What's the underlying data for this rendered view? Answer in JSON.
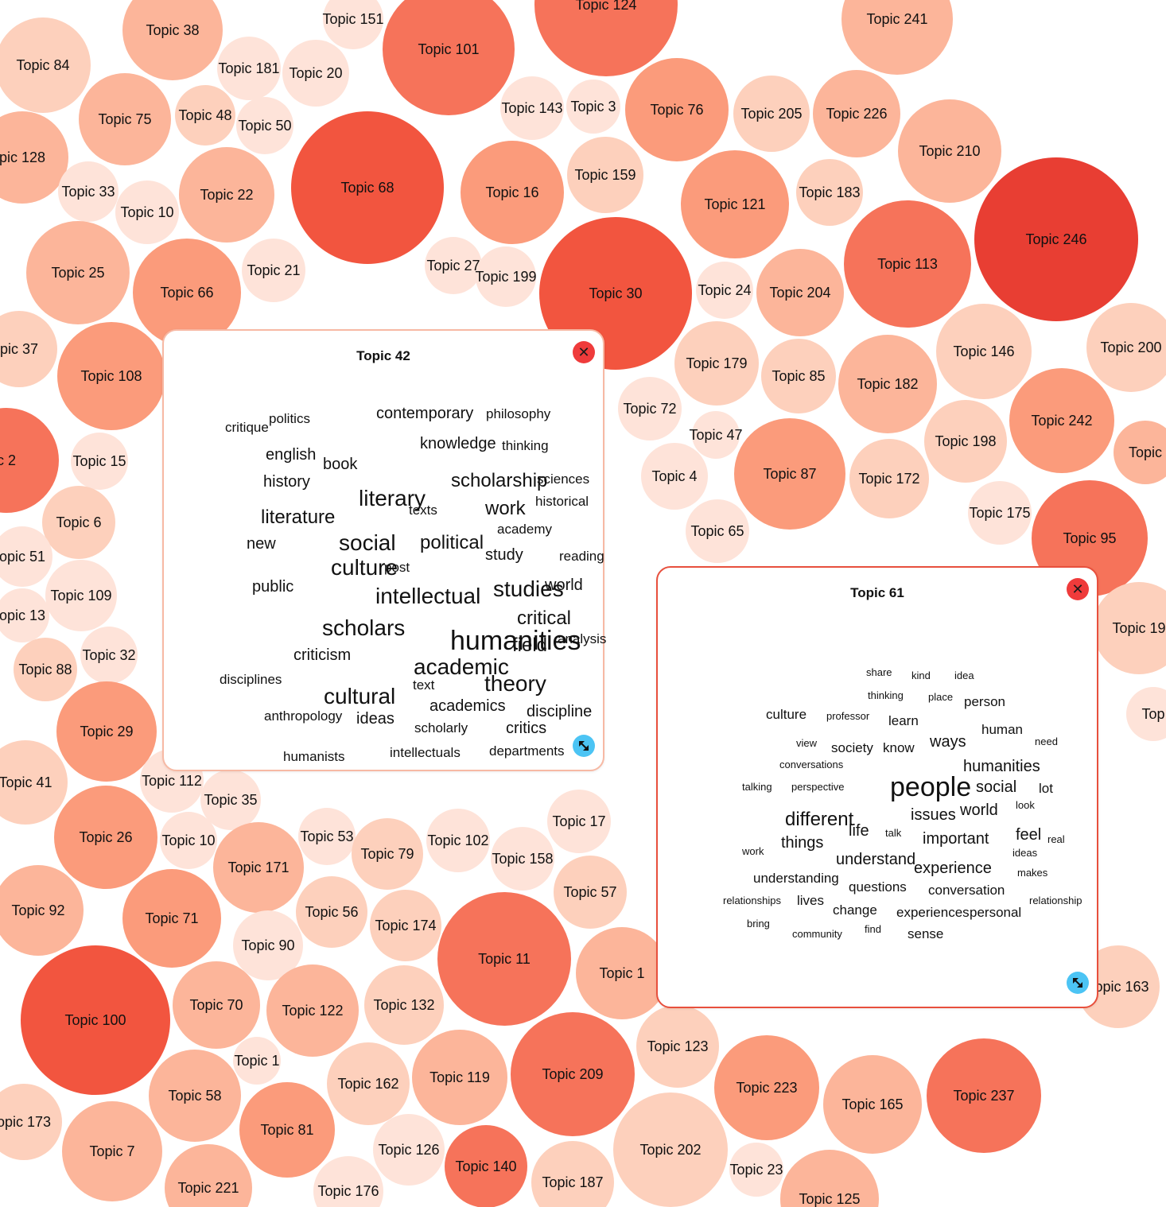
{
  "bubbles": [
    {
      "label": "Topic 38",
      "shade": 2
    },
    {
      "label": "Topic 151",
      "shade": 0
    },
    {
      "label": "Topic 101",
      "shade": 4
    },
    {
      "label": "Topic 124",
      "shade": 4
    },
    {
      "label": "Topic 241",
      "shade": 2
    },
    {
      "label": "Topic 84",
      "shade": 1
    },
    {
      "label": "Topic 181",
      "shade": 0
    },
    {
      "label": "Topic 20",
      "shade": 0
    },
    {
      "label": "Topic 75",
      "shade": 2
    },
    {
      "label": "Topic 48",
      "shade": 1
    },
    {
      "label": "Topic 50",
      "shade": 0
    },
    {
      "label": "Topic 143",
      "shade": 0
    },
    {
      "label": "Topic 3",
      "shade": 0
    },
    {
      "label": "Topic 76",
      "shade": 3
    },
    {
      "label": "Topic 205",
      "shade": 1
    },
    {
      "label": "Topic 226",
      "shade": 2
    },
    {
      "label": "Topic 210",
      "shade": 2
    },
    {
      "label": "pic 128",
      "shade": 2
    },
    {
      "label": "Topic 68",
      "shade": 5
    },
    {
      "label": "Topic 16",
      "shade": 3
    },
    {
      "label": "Topic 159",
      "shade": 1
    },
    {
      "label": "Topic 33",
      "shade": 0
    },
    {
      "label": "Topic 10",
      "shade": 0
    },
    {
      "label": "Topic 22",
      "shade": 2
    },
    {
      "label": "Topic 121",
      "shade": 3
    },
    {
      "label": "Topic 183",
      "shade": 1
    },
    {
      "label": "Topic 246",
      "shade": 6
    },
    {
      "label": "Topic 25",
      "shade": 2
    },
    {
      "label": "Topic 66",
      "shade": 3
    },
    {
      "label": "Topic 21",
      "shade": 0
    },
    {
      "label": "Topic 27",
      "shade": 0
    },
    {
      "label": "Topic 199",
      "shade": 0
    },
    {
      "label": "Topic 30",
      "shade": 5
    },
    {
      "label": "Topic 24",
      "shade": 0
    },
    {
      "label": "Topic 204",
      "shade": 2
    },
    {
      "label": "Topic 113",
      "shade": 4
    },
    {
      "label": "pic 37",
      "shade": 1
    },
    {
      "label": "Topic 108",
      "shade": 3
    },
    {
      "label": "Topic 179",
      "shade": 1
    },
    {
      "label": "Topic 85",
      "shade": 1
    },
    {
      "label": "Topic 182",
      "shade": 2
    },
    {
      "label": "Topic 146",
      "shade": 1
    },
    {
      "label": "Topic 200",
      "shade": 1
    },
    {
      "label": "Topic 72",
      "shade": 0
    },
    {
      "label": "Topic 242",
      "shade": 3
    },
    {
      "label": "c 2",
      "shade": 4
    },
    {
      "label": "Topic 15",
      "shade": 0
    },
    {
      "label": "Topic 47",
      "shade": 0
    },
    {
      "label": "Topic 198",
      "shade": 1
    },
    {
      "label": "Topic",
      "shade": 2
    },
    {
      "label": "Topic 4",
      "shade": 0
    },
    {
      "label": "Topic 87",
      "shade": 3
    },
    {
      "label": "Topic 172",
      "shade": 1
    },
    {
      "label": "Topic 6",
      "shade": 1
    },
    {
      "label": "Topic 175",
      "shade": 0
    },
    {
      "label": "Topic 95",
      "shade": 4
    },
    {
      "label": "Topic 65",
      "shade": 0
    },
    {
      "label": "opic 51",
      "shade": 0
    },
    {
      "label": "Topic 109",
      "shade": 0
    },
    {
      "label": "opic 13",
      "shade": 0
    },
    {
      "label": "Topic 32",
      "shade": 0
    },
    {
      "label": "Topic 88",
      "shade": 1
    },
    {
      "label": "Topic 19",
      "shade": 1
    },
    {
      "label": "Topic 29",
      "shade": 3
    },
    {
      "label": "Top",
      "shade": 0
    },
    {
      "label": "Topic 112",
      "shade": 0
    },
    {
      "label": "Topic 41",
      "shade": 1
    },
    {
      "label": "Topic 35",
      "shade": 0
    },
    {
      "label": "Topic 26",
      "shade": 3
    },
    {
      "label": "Topic 10",
      "shade": 0
    },
    {
      "label": "Topic 53",
      "shade": 0
    },
    {
      "label": "Topic 79",
      "shade": 1
    },
    {
      "label": "Topic 102",
      "shade": 0
    },
    {
      "label": "Topic 17",
      "shade": 0
    },
    {
      "label": "Topic 171",
      "shade": 2
    },
    {
      "label": "Topic 158",
      "shade": 0
    },
    {
      "label": "Topic 92",
      "shade": 2
    },
    {
      "label": "Topic 56",
      "shade": 1
    },
    {
      "label": "Topic 57",
      "shade": 1
    },
    {
      "label": "Topic 71",
      "shade": 3
    },
    {
      "label": "Topic 174",
      "shade": 1
    },
    {
      "label": "Topic 11",
      "shade": 4
    },
    {
      "label": "Topic 90",
      "shade": 0
    },
    {
      "label": "Topic 1",
      "shade": 2
    },
    {
      "label": "Topic 163",
      "shade": 1
    },
    {
      "label": "Topic 100",
      "shade": 5
    },
    {
      "label": "Topic 70",
      "shade": 2
    },
    {
      "label": "Topic 122",
      "shade": 2
    },
    {
      "label": "Topic 132",
      "shade": 1
    },
    {
      "label": "Topic 123",
      "shade": 1
    },
    {
      "label": "Topic 1",
      "shade": 0
    },
    {
      "label": "Topic 209",
      "shade": 4
    },
    {
      "label": "Topic 58",
      "shade": 2
    },
    {
      "label": "Topic 162",
      "shade": 1
    },
    {
      "label": "Topic 119",
      "shade": 2
    },
    {
      "label": "Topic 223",
      "shade": 3
    },
    {
      "label": "Topic 165",
      "shade": 2
    },
    {
      "label": "Topic 237",
      "shade": 4
    },
    {
      "label": "opic 173",
      "shade": 1
    },
    {
      "label": "Topic 81",
      "shade": 3
    },
    {
      "label": "Topic 7",
      "shade": 2
    },
    {
      "label": "Topic 126",
      "shade": 0
    },
    {
      "label": "Topic 140",
      "shade": 4
    },
    {
      "label": "Topic 187",
      "shade": 1
    },
    {
      "label": "Topic 202",
      "shade": 1
    },
    {
      "label": "Topic 23",
      "shade": 0
    },
    {
      "label": "Topic 221",
      "shade": 2
    },
    {
      "label": "Topic 176",
      "shade": 0
    },
    {
      "label": "Topic 125",
      "shade": 2
    }
  ],
  "palette": [
    "#fee3d9",
    "#fdd0bc",
    "#fcb59a",
    "#fb9b7b",
    "#f6735a",
    "#f2553f",
    "#e83e33"
  ],
  "panels": [
    {
      "id": "topic-42",
      "title": "Topic 42",
      "border": "#f7b9a4",
      "words": [
        {
          "t": "critique",
          "s": 1
        },
        {
          "t": "politics",
          "s": 1
        },
        {
          "t": "contemporary",
          "s": 2
        },
        {
          "t": "philosophy",
          "s": 1
        },
        {
          "t": "english",
          "s": 2
        },
        {
          "t": "knowledge",
          "s": 2
        },
        {
          "t": "thinking",
          "s": 1
        },
        {
          "t": "book",
          "s": 2
        },
        {
          "t": "history",
          "s": 2
        },
        {
          "t": "scholarship",
          "s": 3
        },
        {
          "t": "sciences",
          "s": 1
        },
        {
          "t": "literary",
          "s": 4
        },
        {
          "t": "historical",
          "s": 1
        },
        {
          "t": "literature",
          "s": 3
        },
        {
          "t": "texts",
          "s": 1
        },
        {
          "t": "work",
          "s": 3
        },
        {
          "t": "academy",
          "s": 1
        },
        {
          "t": "new",
          "s": 2
        },
        {
          "t": "social",
          "s": 4
        },
        {
          "t": "political",
          "s": 3
        },
        {
          "t": "study",
          "s": 2
        },
        {
          "t": "reading",
          "s": 1
        },
        {
          "t": "culture",
          "s": 4
        },
        {
          "t": "post",
          "s": 1
        },
        {
          "t": "public",
          "s": 2
        },
        {
          "t": "intellectual",
          "s": 4
        },
        {
          "t": "studies",
          "s": 4
        },
        {
          "t": "world",
          "s": 2
        },
        {
          "t": "critical",
          "s": 3
        },
        {
          "t": "scholars",
          "s": 4
        },
        {
          "t": "humanities",
          "s": 5
        },
        {
          "t": "field",
          "s": 3
        },
        {
          "t": "analysis",
          "s": 1
        },
        {
          "t": "criticism",
          "s": 2
        },
        {
          "t": "academic",
          "s": 4
        },
        {
          "t": "disciplines",
          "s": 1
        },
        {
          "t": "theory",
          "s": 4
        },
        {
          "t": "text",
          "s": 1
        },
        {
          "t": "cultural",
          "s": 4
        },
        {
          "t": "academics",
          "s": 2
        },
        {
          "t": "discipline",
          "s": 2
        },
        {
          "t": "anthropology",
          "s": 1
        },
        {
          "t": "ideas",
          "s": 2
        },
        {
          "t": "scholarly",
          "s": 1
        },
        {
          "t": "critics",
          "s": 2
        },
        {
          "t": "humanists",
          "s": 1
        },
        {
          "t": "intellectuals",
          "s": 1
        },
        {
          "t": "departments",
          "s": 1
        }
      ]
    },
    {
      "id": "topic-61",
      "title": "Topic 61",
      "border": "#e8503d",
      "words": [
        {
          "t": "share",
          "s": 0
        },
        {
          "t": "kind",
          "s": 0
        },
        {
          "t": "idea",
          "s": 0
        },
        {
          "t": "thinking",
          "s": 0
        },
        {
          "t": "place",
          "s": 0
        },
        {
          "t": "person",
          "s": 1
        },
        {
          "t": "culture",
          "s": 1
        },
        {
          "t": "professor",
          "s": 0
        },
        {
          "t": "learn",
          "s": 1
        },
        {
          "t": "human",
          "s": 1
        },
        {
          "t": "view",
          "s": 0
        },
        {
          "t": "society",
          "s": 1
        },
        {
          "t": "know",
          "s": 1
        },
        {
          "t": "ways",
          "s": 2
        },
        {
          "t": "need",
          "s": 0
        },
        {
          "t": "conversations",
          "s": 0
        },
        {
          "t": "humanities",
          "s": 2
        },
        {
          "t": "talking",
          "s": 0
        },
        {
          "t": "perspective",
          "s": 0
        },
        {
          "t": "people",
          "s": 5
        },
        {
          "t": "social",
          "s": 2
        },
        {
          "t": "lot",
          "s": 1
        },
        {
          "t": "look",
          "s": 0
        },
        {
          "t": "issues",
          "s": 2
        },
        {
          "t": "world",
          "s": 2
        },
        {
          "t": "different",
          "s": 3
        },
        {
          "t": "life",
          "s": 2
        },
        {
          "t": "talk",
          "s": 0
        },
        {
          "t": "important",
          "s": 2
        },
        {
          "t": "feel",
          "s": 2
        },
        {
          "t": "real",
          "s": 0
        },
        {
          "t": "work",
          "s": 0
        },
        {
          "t": "things",
          "s": 2
        },
        {
          "t": "understand",
          "s": 2
        },
        {
          "t": "ideas",
          "s": 0
        },
        {
          "t": "experience",
          "s": 2
        },
        {
          "t": "makes",
          "s": 0
        },
        {
          "t": "understanding",
          "s": 1
        },
        {
          "t": "questions",
          "s": 1
        },
        {
          "t": "conversation",
          "s": 1
        },
        {
          "t": "relationships",
          "s": 0
        },
        {
          "t": "lives",
          "s": 1
        },
        {
          "t": "change",
          "s": 1
        },
        {
          "t": "experiences",
          "s": 1
        },
        {
          "t": "personal",
          "s": 1
        },
        {
          "t": "relationship",
          "s": 0
        },
        {
          "t": "bring",
          "s": 0
        },
        {
          "t": "community",
          "s": 0
        },
        {
          "t": "find",
          "s": 0
        },
        {
          "t": "sense",
          "s": 1
        }
      ]
    }
  ],
  "icons": {
    "close": "close-icon",
    "resize": "resize-icon",
    "close_glyph": "✕"
  }
}
